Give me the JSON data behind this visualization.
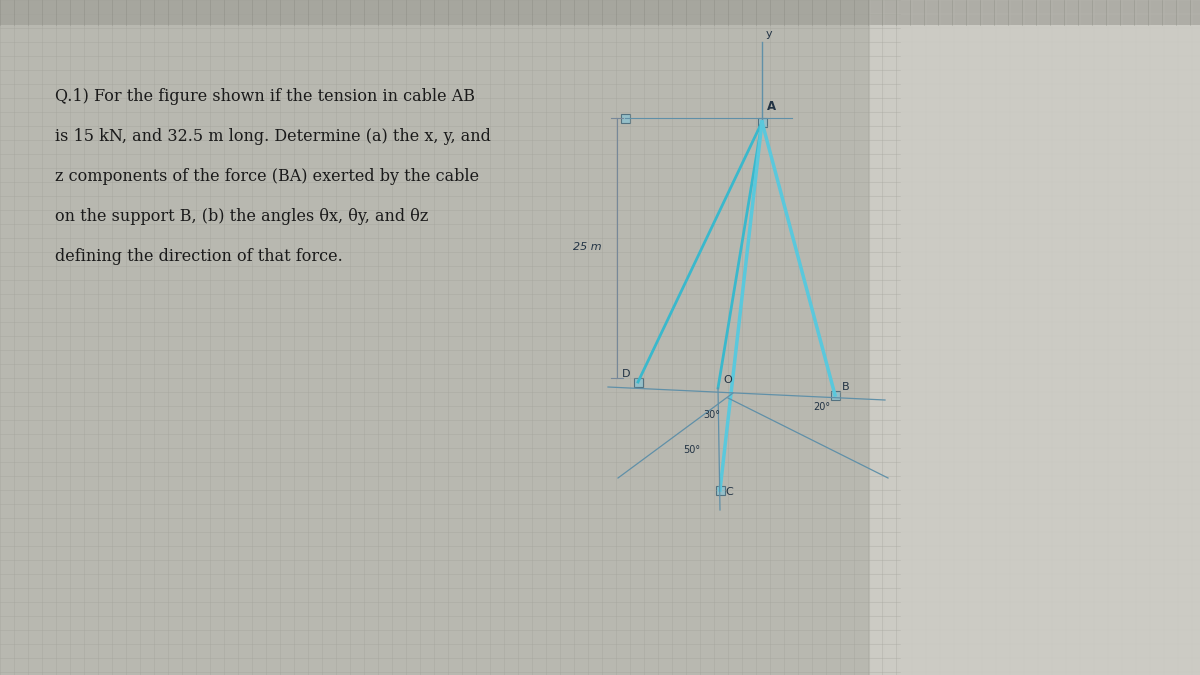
{
  "bg_color": "#b8b8b0",
  "grid_color_dark": "#a0a098",
  "grid_color_light": "#c5c5bd",
  "right_fade_color": "#d0cfc8",
  "title_lines": [
    "Q.1) For the figure shown if the tension in cable AB",
    "is 15 kN, and 32.5 m long. Determine (a) the x, y, and",
    "z components of the force (BA) exerted by the cable",
    "on the support B, (b) the angles θx, θy, and θz",
    "defining the direction of that force."
  ],
  "cable_color": "#3ab8cc",
  "cable_color2": "#5ac8dc",
  "axis_color": "#6090a8",
  "dim_line_color": "#778899",
  "label_color": "#223344",
  "text_color": "#1a1a1a",
  "dim_25m": "25 m",
  "label_A": "A",
  "label_B": "B",
  "label_C": "C",
  "label_D": "D",
  "label_O": "O",
  "label_y": "y",
  "angle_label_1": "20°",
  "angle_label_2": "30°",
  "angle_label_3": "50°"
}
